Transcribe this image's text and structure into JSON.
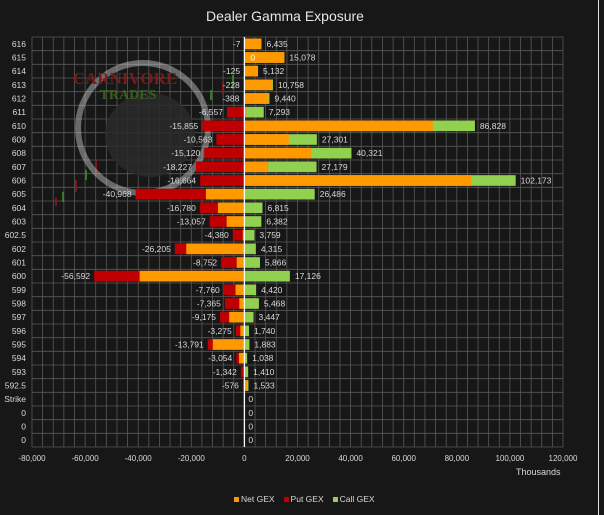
{
  "chart_data": {
    "type": "bar",
    "orientation": "horizontal",
    "title": "Dealer Gamma Exposure",
    "xlabel": "Thousands",
    "xlim": [
      -80000,
      120000
    ],
    "xticks": [
      -80000,
      -60000,
      -40000,
      -20000,
      0,
      20000,
      40000,
      60000,
      80000,
      100000,
      120000
    ],
    "xtick_labels": [
      "-80,000",
      "-60,000",
      "-40,000",
      "-20,000",
      "0",
      "20,000",
      "40,000",
      "60,000",
      "80,000",
      "100,000",
      "120,000"
    ],
    "grid": true,
    "legend_position": "bottom",
    "categories": [
      "616",
      "615",
      "614",
      "613",
      "612",
      "611",
      "610",
      "609",
      "608",
      "607",
      "606",
      "605",
      "604",
      "603",
      "602.5",
      "602",
      "601",
      "600",
      "599",
      "598",
      "597",
      "596",
      "595",
      "594",
      "593",
      "592.5",
      "Strike",
      "0",
      "0",
      "0"
    ],
    "series": [
      {
        "name": "Net GEX",
        "color": "#ff9900"
      },
      {
        "name": "Put GEX",
        "color": "#c00000",
        "values": [
          -7,
          0,
          -125,
          -228,
          -388,
          -6557,
          -15855,
          -10563,
          -15120,
          -18227,
          -16664,
          -40968,
          -16780,
          -13057,
          -4380,
          -26205,
          -8752,
          -56592,
          -7760,
          -7365,
          -9175,
          -3275,
          -13791,
          -3054,
          -1342,
          -576,
          null,
          null,
          null,
          null
        ],
        "labels": [
          "-7",
          "0",
          "-125",
          "-228",
          "-388",
          "-6,557",
          "-15,855",
          "-10,563",
          "-15,120",
          "-18,227",
          "-16,664",
          "-40,968",
          "-16,780",
          "-13,057",
          "-4,380",
          "-26,205",
          "-8,752",
          "-56,592",
          "-7,760",
          "-7,365",
          "-9,175",
          "-3,275",
          "-13,791",
          "-3,054",
          "-1,342",
          "-576",
          "",
          "",
          "",
          ""
        ]
      },
      {
        "name": "Call GEX",
        "color": "#92d050",
        "values": [
          6435,
          15078,
          5132,
          10758,
          9440,
          7293,
          86828,
          27301,
          40321,
          27179,
          102173,
          26486,
          6815,
          6382,
          3759,
          4315,
          5866,
          17126,
          4420,
          5468,
          3447,
          1740,
          1883,
          1038,
          1410,
          1533,
          0,
          0,
          0,
          0
        ],
        "labels": [
          "6,435",
          "15,078",
          "5,132",
          "10,758",
          "9,440",
          "7,293",
          "86,828",
          "27,301",
          "40,321",
          "27,179",
          "102,173",
          "26,486",
          "6,815",
          "6,382",
          "3,759",
          "4,315",
          "5,866",
          "17,126",
          "4,420",
          "5,468",
          "3,447",
          "1,740",
          "1,883",
          "1,038",
          "1,410",
          "1,533",
          "0",
          "0",
          "0",
          "0"
        ]
      }
    ]
  },
  "watermark": {
    "line1": "Carnivore",
    "line2": "Trades"
  }
}
